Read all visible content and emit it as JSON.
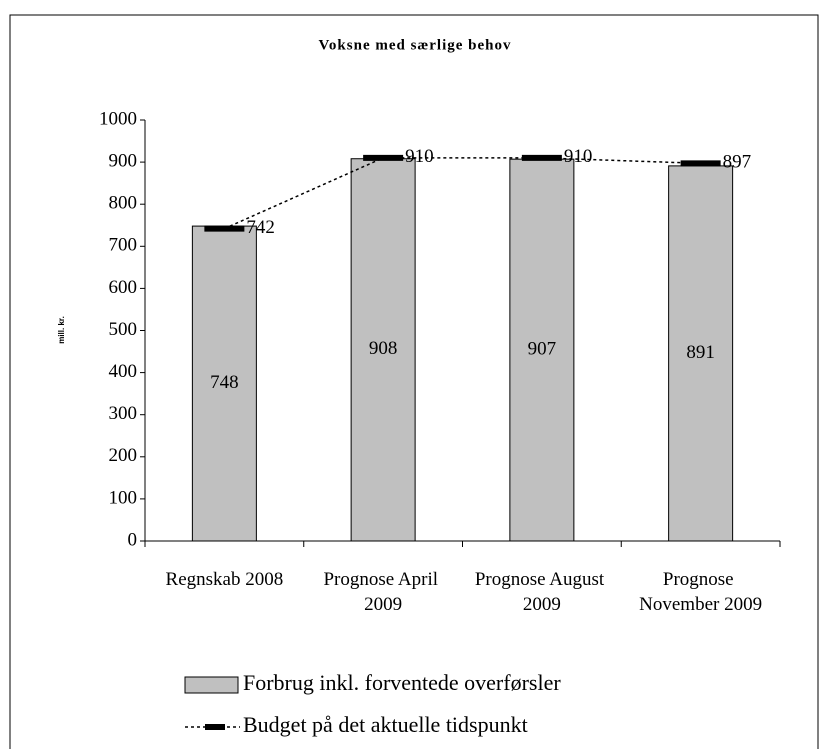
{
  "chart_data": {
    "type": "bar_line",
    "title": "Voksne med særlige behov",
    "y_label": "mill. kr.",
    "categories": [
      "Regnskab 2008",
      "Prognose April 2009",
      "Prognose August 2009",
      "Prognose November 2009"
    ],
    "series": [
      {
        "name": "Forbrug inkl. forventede overførsler",
        "type": "bar",
        "color": "#c0c0c0",
        "values": [
          748,
          908,
          907,
          891
        ]
      },
      {
        "name": "Budget på det aktuelle tidspunkt",
        "type": "line",
        "color": "#000000",
        "values": [
          742,
          910,
          910,
          897
        ]
      }
    ],
    "ylim": [
      0,
      1000
    ],
    "yticks": [
      0,
      100,
      200,
      300,
      400,
      500,
      600,
      700,
      800,
      900,
      1000
    ],
    "grid": false,
    "legend": "bottom"
  }
}
